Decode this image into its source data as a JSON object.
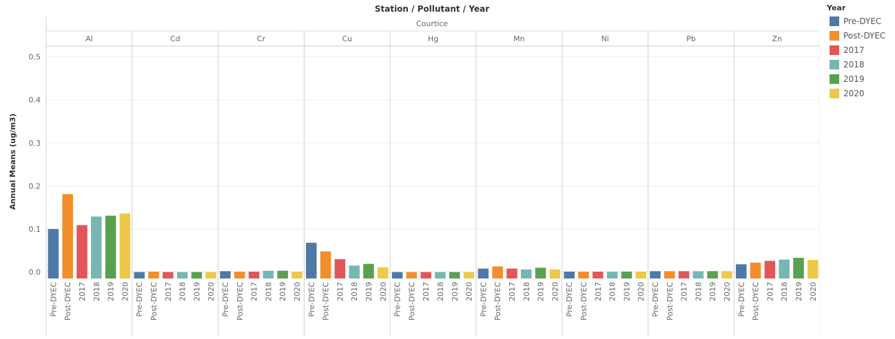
{
  "chart_data": {
    "type": "bar",
    "title": "Station / Pollutant / Year",
    "station": "Courtice",
    "ylabel": "Annual Means (ug/m3)",
    "ylim": [
      -0.015,
      0.525
    ],
    "yticks": [
      0.0,
      0.1,
      0.2,
      0.3,
      0.4,
      0.5
    ],
    "ytick_labels": [
      "0.0",
      "0.1",
      "0.2",
      "0.3",
      "0.4",
      "0.5"
    ],
    "grid": true,
    "legend_title": "Year",
    "legend_position": "right",
    "categories": [
      "Pre-DYEC",
      "Post-DYEC",
      "2017",
      "2018",
      "2019",
      "2020"
    ],
    "colors": [
      "#4e79a7",
      "#f28e2b",
      "#e15759",
      "#76b7b2",
      "#59a14f",
      "#edc948"
    ],
    "pollutants": [
      {
        "name": "Al",
        "values": [
          0.1,
          0.181,
          0.109,
          0.129,
          0.131,
          0.136
        ]
      },
      {
        "name": "Cd",
        "values": [
          0.0,
          0.001,
          0.0,
          0.0,
          0.0,
          0.0
        ]
      },
      {
        "name": "Cr",
        "values": [
          0.002,
          0.001,
          0.001,
          0.003,
          0.003,
          0.001
        ]
      },
      {
        "name": "Cu",
        "values": [
          0.068,
          0.048,
          0.03,
          0.015,
          0.019,
          0.011
        ]
      },
      {
        "name": "Hg",
        "values": [
          0.0,
          0.0,
          0.0,
          0.0,
          0.0,
          0.0
        ]
      },
      {
        "name": "Mn",
        "values": [
          0.008,
          0.013,
          0.008,
          0.006,
          0.01,
          0.006
        ]
      },
      {
        "name": "Ni",
        "values": [
          0.001,
          0.001,
          0.001,
          0.001,
          0.001,
          0.001
        ]
      },
      {
        "name": "Pb",
        "values": [
          0.002,
          0.002,
          0.002,
          0.002,
          0.002,
          0.002
        ]
      },
      {
        "name": "Zn",
        "values": [
          0.018,
          0.022,
          0.026,
          0.029,
          0.033,
          0.028
        ]
      }
    ]
  }
}
